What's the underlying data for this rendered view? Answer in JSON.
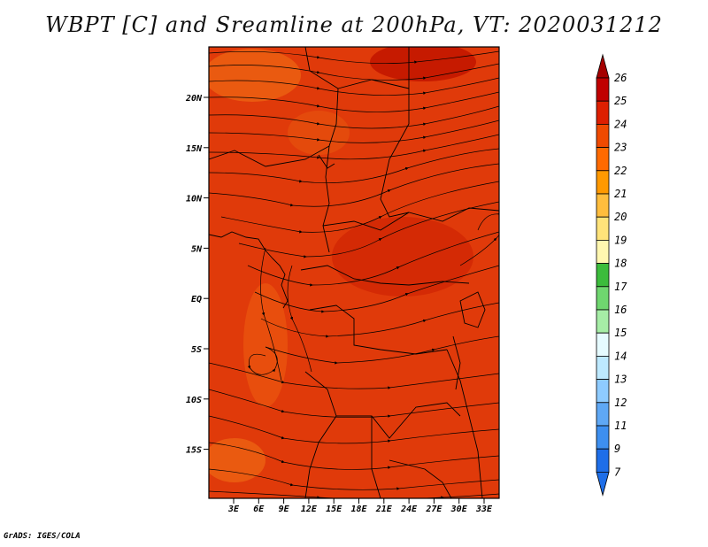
{
  "title": "WBPT [C] and Sreamline at 200hPa, VT: 2020031212",
  "credit": "GrADS: IGES/COLA",
  "map": {
    "variable": "WBPT",
    "level": "200hPa",
    "lon_labels": [
      "3E",
      "6E",
      "9E",
      "12E",
      "15E",
      "18E",
      "21E",
      "24E",
      "27E",
      "30E",
      "33E"
    ],
    "lat_labels": [
      "20N",
      "15N",
      "10N",
      "5N",
      "EQ",
      "5S",
      "10S",
      "15S"
    ],
    "base_color": "#e03a0a"
  },
  "colorbar": {
    "levels": [
      "26",
      "25",
      "24",
      "23",
      "22",
      "21",
      "20",
      "19",
      "18",
      "17",
      "16",
      "15",
      "14",
      "13",
      "12",
      "11",
      "9",
      "7"
    ],
    "colors": [
      "#a50000",
      "#c00000",
      "#dd1f00",
      "#ef4a00",
      "#ff6a00",
      "#ff9900",
      "#ffbd3d",
      "#ffe37a",
      "#fff7b0",
      "#3cbc3c",
      "#6fd66f",
      "#a6eda6",
      "#e6fbff",
      "#bde9ff",
      "#8ecbff",
      "#5fa8f5",
      "#3d8ff0",
      "#1e6ee8"
    ]
  }
}
